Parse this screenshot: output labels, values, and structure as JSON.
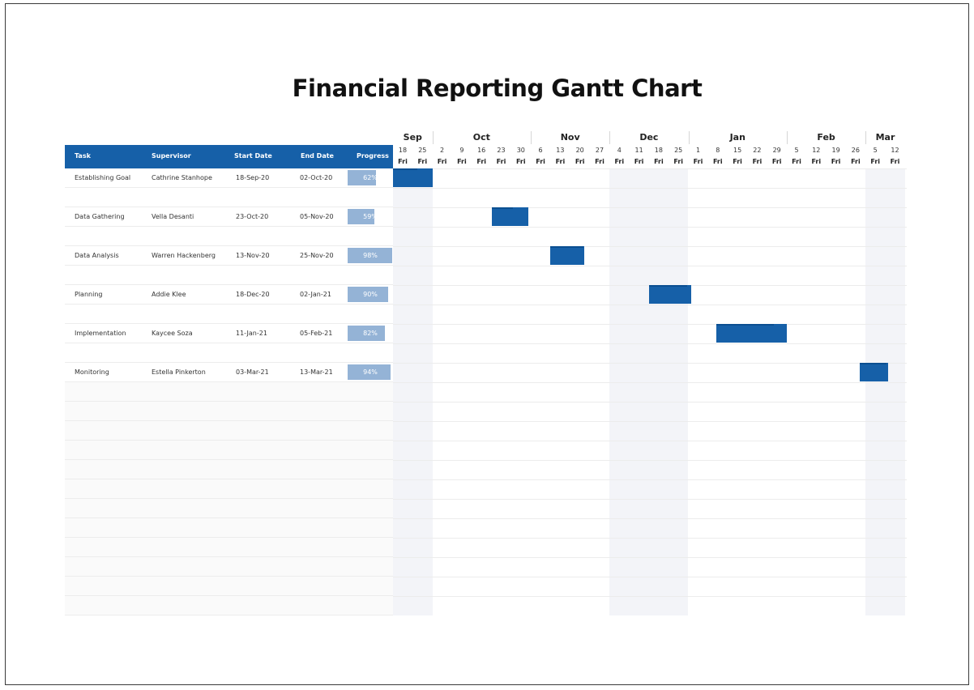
{
  "title": "Financial Reporting Gantt Chart",
  "table": {
    "headers": {
      "task": "Task",
      "supervisor": "Supervisor",
      "start": "Start Date",
      "end": "End Date",
      "progress": "Progress"
    },
    "rows": [
      {
        "task": "Establishing Goal",
        "supervisor": "Cathrine Stanhope",
        "start": "18-Sep-20",
        "end": "02-Oct-20",
        "progress": "62%",
        "progress_value": 0.62
      },
      {
        "task": "Data Gathering",
        "supervisor": "Vella Desanti",
        "start": "23-Oct-20",
        "end": "05-Nov-20",
        "progress": "59%",
        "progress_value": 0.59
      },
      {
        "task": "Data Analysis",
        "supervisor": "Warren Hackenberg",
        "start": "13-Nov-20",
        "end": "25-Nov-20",
        "progress": "98%",
        "progress_value": 0.98
      },
      {
        "task": "Planning",
        "supervisor": "Addie Klee",
        "start": "18-Dec-20",
        "end": "02-Jan-21",
        "progress": "90%",
        "progress_value": 0.9
      },
      {
        "task": "Implementation",
        "supervisor": "Kaycee Soza",
        "start": "11-Jan-21",
        "end": "05-Feb-21",
        "progress": "82%",
        "progress_value": 0.82
      },
      {
        "task": "Monitoring",
        "supervisor": "Estella Pinkerton",
        "start": "03-Mar-21",
        "end": "13-Mar-21",
        "progress": "94%",
        "progress_value": 0.94
      }
    ]
  },
  "timeline": {
    "months": [
      "Sep",
      "Oct",
      "Nov",
      "Dec",
      "Jan",
      "Feb",
      "Mar"
    ],
    "days": [
      "18",
      "25",
      "2",
      "9",
      "16",
      "23",
      "30",
      "6",
      "13",
      "20",
      "27",
      "4",
      "11",
      "18",
      "25",
      "1",
      "8",
      "15",
      "22",
      "29",
      "5",
      "12",
      "19",
      "26",
      "5",
      "12"
    ],
    "weekday": "Fri"
  },
  "colors": {
    "header_bg": "#1660a8",
    "bar": "#1660a8",
    "progress_fill": "#94b3d6",
    "shade": "#f3f4f8"
  }
}
